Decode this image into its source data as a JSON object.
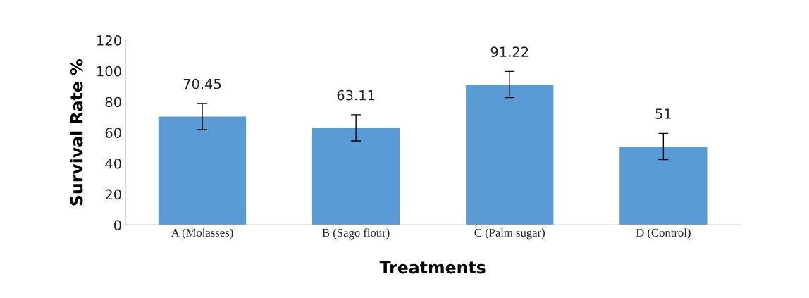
{
  "chart_data": {
    "type": "bar",
    "xlabel": "Treatments",
    "ylabel": "Survival Rate %",
    "categories": [
      "A (Molasses)",
      "B (Sago flour)",
      "C (Palm sugar)",
      "D (Control)"
    ],
    "values": [
      70.45,
      63.11,
      91.22,
      51
    ],
    "color": "#5b9bd5",
    "errors": [
      8.5,
      8.5,
      8.5,
      8.5
    ],
    "data_labels": true,
    "ylim": [
      0,
      120
    ],
    "yticks": [
      0,
      20,
      40,
      60,
      80,
      100,
      120
    ],
    "grid": false
  }
}
